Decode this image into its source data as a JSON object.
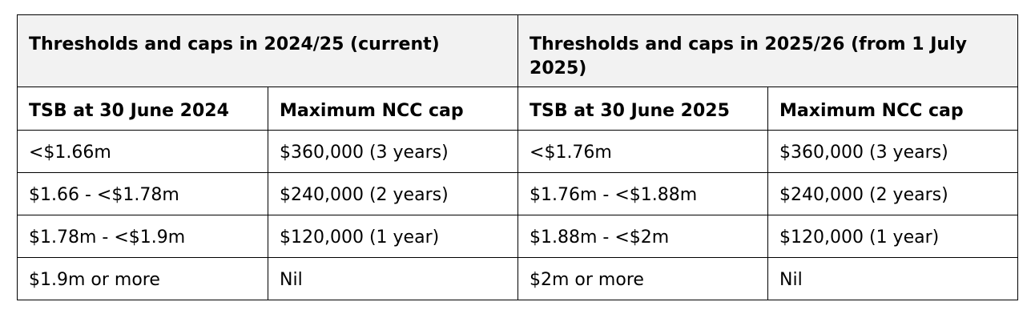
{
  "table": {
    "group_headers": [
      "Thresholds and caps in 2024/25 (current)",
      "Thresholds and caps in 2025/26 (from 1 July 2025)"
    ],
    "column_headers": [
      "TSB at 30 June 2024",
      "Maximum NCC cap",
      "TSB at 30 June 2025",
      "Maximum NCC cap"
    ],
    "rows": [
      [
        "<$1.66m",
        "$360,000 (3 years)",
        "<$1.76m",
        "$360,000 (3 years)"
      ],
      [
        "$1.66 - <$1.78m",
        "$240,000 (2 years)",
        "$1.76m - <$1.88m",
        "$240,000 (2 years)"
      ],
      [
        "$1.78m - <$1.9m",
        "$120,000 (1 year)",
        "$1.88m - <$2m",
        "$120,000 (1 year)"
      ],
      [
        "$1.9m or more",
        "Nil",
        "$2m or more",
        "Nil"
      ]
    ]
  }
}
